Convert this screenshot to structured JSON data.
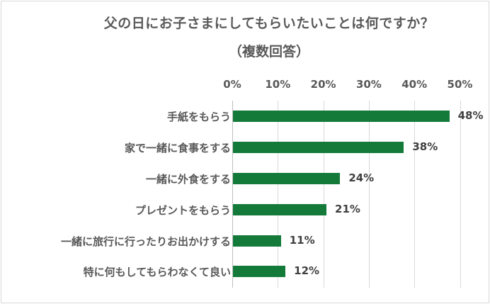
{
  "chart_data": {
    "type": "bar",
    "orientation": "horizontal",
    "title": "父の日にお子さまにしてもらいたいことは何ですか？",
    "subtitle": "（複数回答）",
    "categories": [
      "手紙をもらう",
      "家で一緒に食事をする",
      "一緒に外食をする",
      "プレゼントをもらう",
      "一緒に旅行に行ったりお出かけする",
      "特に何もしてもらわなくて良い"
    ],
    "values": [
      48,
      38,
      24,
      21,
      11,
      12
    ],
    "value_labels": [
      "48%",
      "38%",
      "24%",
      "21%",
      "11%",
      "12%"
    ],
    "xlabel": "",
    "ylabel": "",
    "xlim": [
      0,
      50
    ],
    "x_ticks": [
      "0%",
      "10%",
      "20%",
      "30%",
      "40%",
      "50%"
    ],
    "grid": true,
    "legend": null,
    "bar_color": "#137a3a"
  }
}
